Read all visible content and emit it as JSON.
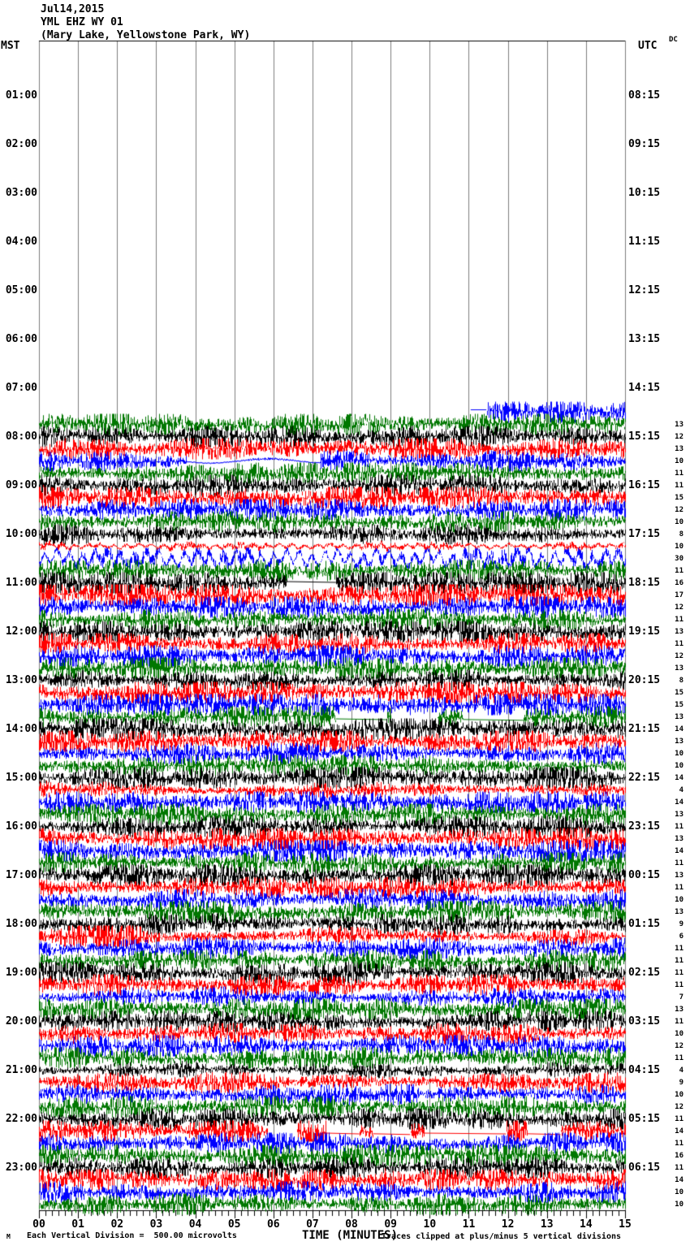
{
  "header": {
    "date": "Jul14,2015",
    "station": "YML EHZ WY 01",
    "location": "(Mary Lake, Yellowstone Park, WY)",
    "left_tz": "MST",
    "right_tz": "UTC",
    "dc_label": "DC"
  },
  "footer": {
    "logo": "M",
    "scale_note": "Each Vertical Division =  500.00 microvolts",
    "axis_title": "TIME (MINUTES)",
    "clip_note": "Traces clipped at plus/minus 5 vertical divisions"
  },
  "colors": {
    "grid": "#7d7d7d",
    "axis": "#000000",
    "trace_black": "#000000",
    "trace_red": "#ff0000",
    "trace_blue": "#0000ff",
    "trace_green": "#007700"
  },
  "chart_data": {
    "type": "helicorder",
    "title": "YML EHZ WY 01 webicorder, Jul 14 2015, Mary Lake, Yellowstone Park, WY",
    "xlabel": "TIME (MINUTES)",
    "x_axis": {
      "min": 0,
      "max": 15,
      "gridline_every_min": 1,
      "tick_every_sec": 10,
      "minute_labels": [
        "00",
        "01",
        "02",
        "03",
        "04",
        "05",
        "06",
        "07",
        "08",
        "09",
        "10",
        "11",
        "12",
        "13",
        "14",
        "15"
      ]
    },
    "rows_per_hour": 4,
    "row_minutes": 15,
    "trace_color_cycle": {
      "hh:00": "#000000",
      "hh:15": "#ff0000",
      "hh:30": "#0000ff",
      "hh:45": "#007700"
    },
    "left_hour_labels": [
      "01:00",
      "02:00",
      "03:00",
      "04:00",
      "05:00",
      "06:00",
      "07:00",
      "08:00",
      "09:00",
      "10:00",
      "11:00",
      "12:00",
      "13:00",
      "14:00",
      "15:00",
      "16:00",
      "17:00",
      "18:00",
      "19:00",
      "20:00",
      "21:00",
      "22:00",
      "23:00"
    ],
    "right_utc_labels": [
      "08:15",
      "09:15",
      "10:15",
      "11:15",
      "12:15",
      "13:15",
      "14:15",
      "15:15",
      "16:15",
      "17:15",
      "18:15",
      "19:15",
      "20:15",
      "21:15",
      "22:15",
      "23:15",
      "00:15",
      "01:15",
      "02:15",
      "03:15",
      "04:15",
      "05:15",
      "06:15"
    ],
    "data_start_row": "07:30",
    "data_start_minute": 11.05,
    "data_end_row": "23:45",
    "amplitude_values": {
      "first_row_time": "07:45",
      "values": [
        13,
        12,
        13,
        10,
        11,
        11,
        15,
        12,
        10,
        8,
        10,
        30,
        11,
        16,
        17,
        12,
        11,
        13,
        11,
        12,
        13,
        8,
        15,
        15,
        13,
        14,
        13,
        10,
        10,
        14,
        4,
        14,
        13,
        11,
        13,
        14,
        11,
        13,
        11,
        10,
        13,
        9,
        6,
        11,
        11,
        11,
        11,
        7,
        13,
        11,
        10,
        12,
        11,
        4,
        9,
        10,
        12,
        11,
        14,
        11,
        16,
        11,
        14,
        10,
        10
      ]
    },
    "events": {
      "07:30": {
        "start_min": 11.05,
        "lead_flat": [
          11.05,
          11.45
        ]
      },
      "08:30": {
        "smooth": [
          3.8,
          7.2
        ]
      },
      "10:15": {
        "long_period": 0.55
      },
      "10:30": {
        "long_period": 1.0
      },
      "11:00": {
        "flat": [
          [
            6.35,
            7.6
          ]
        ],
        "flat_offset": -1.5
      },
      "11:15": {
        "spikes": [
          4.25
        ]
      },
      "13:15": {
        "spiky": 1
      },
      "13:30": {
        "spiky": 1
      },
      "13:45": {
        "flat": [
          [
            7.6,
            8.9
          ],
          [
            10.85,
            12.4
          ]
        ],
        "gap": [
          [
            9.0,
            10.2
          ]
        ]
      },
      "17:45": {
        "spikes": [
          4.88
        ]
      },
      "18:15": {
        "burst": [
          0.3,
          2.6
        ]
      },
      "22:15": {
        "gap": [
          [
            5.85,
            6.6
          ]
        ],
        "flat": [
          [
            7.35,
            8.2
          ],
          [
            8.55,
            9.5
          ],
          [
            9.85,
            11.95
          ],
          [
            12.5,
            13.35
          ]
        ]
      },
      "23:15": {
        "spikes": [
          8.85
        ]
      }
    }
  }
}
